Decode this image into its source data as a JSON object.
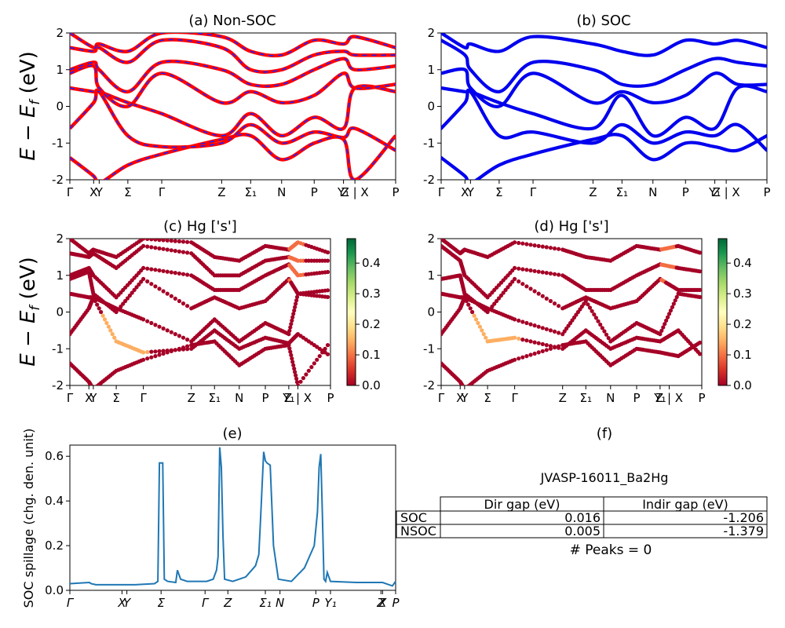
{
  "figure": {
    "id_label": "JVASP-16011_Ba2Hg",
    "peaks_label": "# Peaks = 0"
  },
  "colors": {
    "nonsoc_band": "#ff0000",
    "nonsoc_dash": "#2222ff",
    "soc_band": "#0000ee",
    "spillage_line": "#1f77b4",
    "colormap": [
      "#a50026",
      "#d73027",
      "#f46d43",
      "#fdae61",
      "#fee08b",
      "#ffffbf",
      "#d9ef8b",
      "#a6d96a",
      "#66bd63",
      "#1a9850",
      "#006837"
    ]
  },
  "chart_data": [
    {
      "id": "a",
      "type": "line",
      "title": "(a) Non-SOC",
      "ylabel": "E − E_f (eV)",
      "ylim": [
        -2,
        2
      ],
      "yticks": [
        -2,
        -1,
        0,
        1,
        2
      ],
      "xticks": [
        "Γ",
        "X",
        "Y",
        "Σ",
        "Γ",
        "Z",
        "Σ₁",
        "N",
        "P",
        "Y₁",
        "Z | X",
        "P"
      ],
      "xtick_pos": [
        0,
        0.073,
        0.09,
        0.178,
        0.282,
        0.466,
        0.555,
        0.65,
        0.75,
        0.84,
        0.875,
        1.0
      ],
      "series": [
        {
          "x": [
            0,
            0.073,
            0.09,
            0.178,
            0.282,
            0.466,
            0.555,
            0.65,
            0.75,
            0.84,
            0.875,
            1.0
          ],
          "y": [
            -1.4,
            -1.9,
            -2.1,
            -1.6,
            -1.3,
            -0.9,
            -0.8,
            -1.45,
            -1.0,
            -0.9,
            -2.0,
            -0.8
          ]
        },
        {
          "x": [
            0,
            0.073,
            0.09,
            0.178,
            0.282,
            0.466,
            0.555,
            0.65,
            0.75,
            0.84,
            0.875,
            1.0
          ],
          "y": [
            -0.6,
            0.1,
            0.4,
            -0.8,
            -1.1,
            -1.0,
            -0.5,
            -1.0,
            -0.7,
            -0.85,
            -0.6,
            -1.2
          ]
        },
        {
          "x": [
            0,
            0.073,
            0.09,
            0.178,
            0.282,
            0.466,
            0.555,
            0.65,
            0.75,
            0.84,
            0.875,
            1.0
          ],
          "y": [
            0.5,
            0.4,
            0.4,
            0.1,
            -0.2,
            -0.8,
            -0.2,
            -0.8,
            -0.3,
            -0.6,
            0.5,
            0.4
          ]
        },
        {
          "x": [
            0,
            0.073,
            0.09,
            0.178,
            0.282,
            0.466,
            0.555,
            0.65,
            0.75,
            0.84,
            0.875,
            1.0
          ],
          "y": [
            0.9,
            1.1,
            0.5,
            0.0,
            0.9,
            0.1,
            0.4,
            0.1,
            0.3,
            0.9,
            0.5,
            0.6
          ]
        },
        {
          "x": [
            0,
            0.073,
            0.09,
            0.178,
            0.282,
            0.466,
            0.555,
            0.65,
            0.75,
            0.84,
            0.875,
            1.0
          ],
          "y": [
            1.0,
            1.2,
            1.0,
            0.4,
            1.2,
            1.0,
            0.6,
            0.6,
            1.0,
            1.3,
            1.0,
            1.1
          ]
        },
        {
          "x": [
            0,
            0.073,
            0.09,
            0.178,
            0.282,
            0.466,
            0.555,
            0.65,
            0.75,
            0.84,
            0.875,
            1.0
          ],
          "y": [
            1.6,
            1.5,
            1.6,
            1.2,
            1.8,
            1.6,
            1.0,
            1.0,
            1.4,
            1.5,
            1.4,
            1.4
          ]
        },
        {
          "x": [
            0,
            0.073,
            0.09,
            0.178,
            0.282,
            0.466,
            0.555,
            0.65,
            0.75,
            0.84,
            0.875,
            1.0
          ],
          "y": [
            2.0,
            1.6,
            1.7,
            1.5,
            2.0,
            1.9,
            1.5,
            1.4,
            1.8,
            1.7,
            1.9,
            1.6
          ]
        }
      ]
    },
    {
      "id": "b",
      "type": "line",
      "title": "(b) SOC",
      "ylim": [
        -2,
        2
      ],
      "yticks": [
        -2,
        -1,
        0,
        1,
        2
      ],
      "xticks": [
        "Γ",
        "X",
        "Y",
        "Σ",
        "Γ",
        "Z",
        "Σ₁",
        "N",
        "P",
        "Y₁",
        "Z | X",
        "P"
      ],
      "xtick_pos": [
        0,
        0.073,
        0.09,
        0.178,
        0.282,
        0.466,
        0.555,
        0.65,
        0.75,
        0.84,
        0.875,
        1.0
      ],
      "series": [
        {
          "x": [
            0,
            0.073,
            0.09,
            0.178,
            0.282,
            0.466,
            0.555,
            0.65,
            0.75,
            0.84,
            0.91,
            1.0
          ],
          "y": [
            -1.4,
            -1.9,
            -2.1,
            -1.6,
            -1.3,
            -0.9,
            -0.8,
            -1.45,
            -1.0,
            -1.1,
            -1.2,
            -0.8
          ]
        },
        {
          "x": [
            0,
            0.073,
            0.09,
            0.178,
            0.282,
            0.466,
            0.555,
            0.65,
            0.75,
            0.84,
            0.91,
            1.0
          ],
          "y": [
            -0.6,
            0.1,
            0.4,
            -0.8,
            -0.7,
            -1.0,
            -0.5,
            -1.0,
            -0.7,
            -0.8,
            -0.5,
            -1.2
          ]
        },
        {
          "x": [
            0,
            0.073,
            0.09,
            0.178,
            0.282,
            0.466,
            0.555,
            0.65,
            0.75,
            0.84,
            0.91,
            1.0
          ],
          "y": [
            0.5,
            0.4,
            0.4,
            0.1,
            -0.2,
            -0.6,
            0.3,
            -0.8,
            -0.3,
            -0.6,
            0.5,
            0.4
          ]
        },
        {
          "x": [
            0,
            0.073,
            0.09,
            0.178,
            0.282,
            0.466,
            0.555,
            0.65,
            0.75,
            0.84,
            0.91,
            1.0
          ],
          "y": [
            0.9,
            1.0,
            0.5,
            0.0,
            0.9,
            0.1,
            0.4,
            0.1,
            0.3,
            0.9,
            0.6,
            0.6
          ]
        },
        {
          "x": [
            0,
            0.073,
            0.09,
            0.178,
            0.282,
            0.466,
            0.555,
            0.65,
            0.75,
            0.84,
            0.91,
            1.0
          ],
          "y": [
            1.8,
            1.4,
            1.0,
            0.4,
            1.2,
            1.0,
            0.6,
            0.6,
            1.0,
            1.3,
            1.2,
            1.1
          ]
        },
        {
          "x": [
            0,
            0.073,
            0.09,
            0.178,
            0.282,
            0.466,
            0.555,
            0.65,
            0.75,
            0.84,
            0.91,
            1.0
          ],
          "y": [
            2.0,
            1.6,
            1.7,
            1.5,
            1.9,
            1.7,
            1.5,
            1.4,
            1.8,
            1.7,
            1.8,
            1.6
          ]
        }
      ]
    },
    {
      "id": "c",
      "type": "scatter",
      "title": "(c)  Hg ['s']",
      "ylabel": "E − E_f (eV)",
      "ylim": [
        -2,
        2
      ],
      "yticks": [
        -2,
        -1,
        0,
        1,
        2
      ],
      "xticks": [
        "Γ",
        "X",
        "Y",
        "Σ",
        "Γ",
        "Z",
        "Σ₁",
        "N",
        "P",
        "Y₁",
        "Z | X",
        "P"
      ],
      "xtick_pos": [
        0,
        0.073,
        0.09,
        0.178,
        0.282,
        0.466,
        0.555,
        0.65,
        0.75,
        0.84,
        0.875,
        1.0
      ],
      "colorbar": {
        "min": 0.0,
        "max": 0.48,
        "ticks": [
          0.0,
          0.1,
          0.2,
          0.3,
          0.4
        ]
      }
    },
    {
      "id": "d",
      "type": "scatter",
      "title": "(d) Hg ['s']",
      "ylim": [
        -2,
        2
      ],
      "yticks": [
        -2,
        -1,
        0,
        1,
        2
      ],
      "xticks": [
        "Γ",
        "X",
        "Y",
        "Σ",
        "Γ",
        "Z",
        "Σ₁",
        "N",
        "P",
        "Y₁",
        "Z | X",
        "P"
      ],
      "xtick_pos": [
        0,
        0.073,
        0.09,
        0.178,
        0.282,
        0.466,
        0.555,
        0.65,
        0.75,
        0.84,
        0.875,
        1.0
      ],
      "colorbar": {
        "min": 0.0,
        "max": 0.48,
        "ticks": [
          0.0,
          0.1,
          0.2,
          0.3,
          0.4
        ]
      }
    },
    {
      "id": "e",
      "type": "line",
      "title": "(e)",
      "ylabel": "SOC spillage (chg. den. unit)",
      "ylim": [
        0,
        0.65
      ],
      "yticks": [
        0.0,
        0.2,
        0.4,
        0.6
      ],
      "xticks": [
        "Γ",
        "X",
        "Y",
        "Σ",
        "Γ",
        "Z",
        "Σ₁",
        "N",
        "P",
        "Y₁",
        "Z",
        "X",
        "P"
      ],
      "xtick_pos": [
        0,
        0.16,
        0.175,
        0.28,
        0.415,
        0.485,
        0.6,
        0.645,
        0.755,
        0.8,
        0.955,
        0.96,
        1.0
      ],
      "series": [
        {
          "x": [
            0,
            0.06,
            0.065,
            0.08,
            0.2,
            0.26,
            0.27,
            0.275,
            0.285,
            0.29,
            0.3,
            0.325,
            0.33,
            0.34,
            0.36,
            0.42,
            0.44,
            0.45,
            0.455,
            0.46,
            0.465,
            0.47,
            0.475,
            0.5,
            0.54,
            0.57,
            0.58,
            0.585,
            0.595,
            0.6,
            0.605,
            0.615,
            0.625,
            0.64,
            0.68,
            0.72,
            0.75,
            0.76,
            0.765,
            0.77,
            0.775,
            0.78,
            0.785,
            0.79,
            0.8,
            0.88,
            0.96,
            0.98,
            0.99,
            1.0
          ],
          "y": [
            0.03,
            0.035,
            0.03,
            0.025,
            0.025,
            0.03,
            0.04,
            0.57,
            0.57,
            0.05,
            0.04,
            0.035,
            0.09,
            0.05,
            0.04,
            0.04,
            0.05,
            0.09,
            0.15,
            0.64,
            0.55,
            0.25,
            0.05,
            0.04,
            0.06,
            0.11,
            0.16,
            0.31,
            0.62,
            0.58,
            0.57,
            0.56,
            0.2,
            0.05,
            0.04,
            0.1,
            0.2,
            0.35,
            0.55,
            0.61,
            0.35,
            0.05,
            0.04,
            0.08,
            0.04,
            0.035,
            0.035,
            0.025,
            0.02,
            0.04
          ]
        }
      ]
    },
    {
      "id": "f",
      "type": "table",
      "title": "(f)",
      "columns": [
        "",
        "Dir gap (eV)",
        "Indir gap (eV)"
      ],
      "rows": [
        [
          "SOC",
          "0.016",
          "-1.206"
        ],
        [
          "NSOC",
          "0.005",
          "-1.379"
        ]
      ]
    }
  ]
}
